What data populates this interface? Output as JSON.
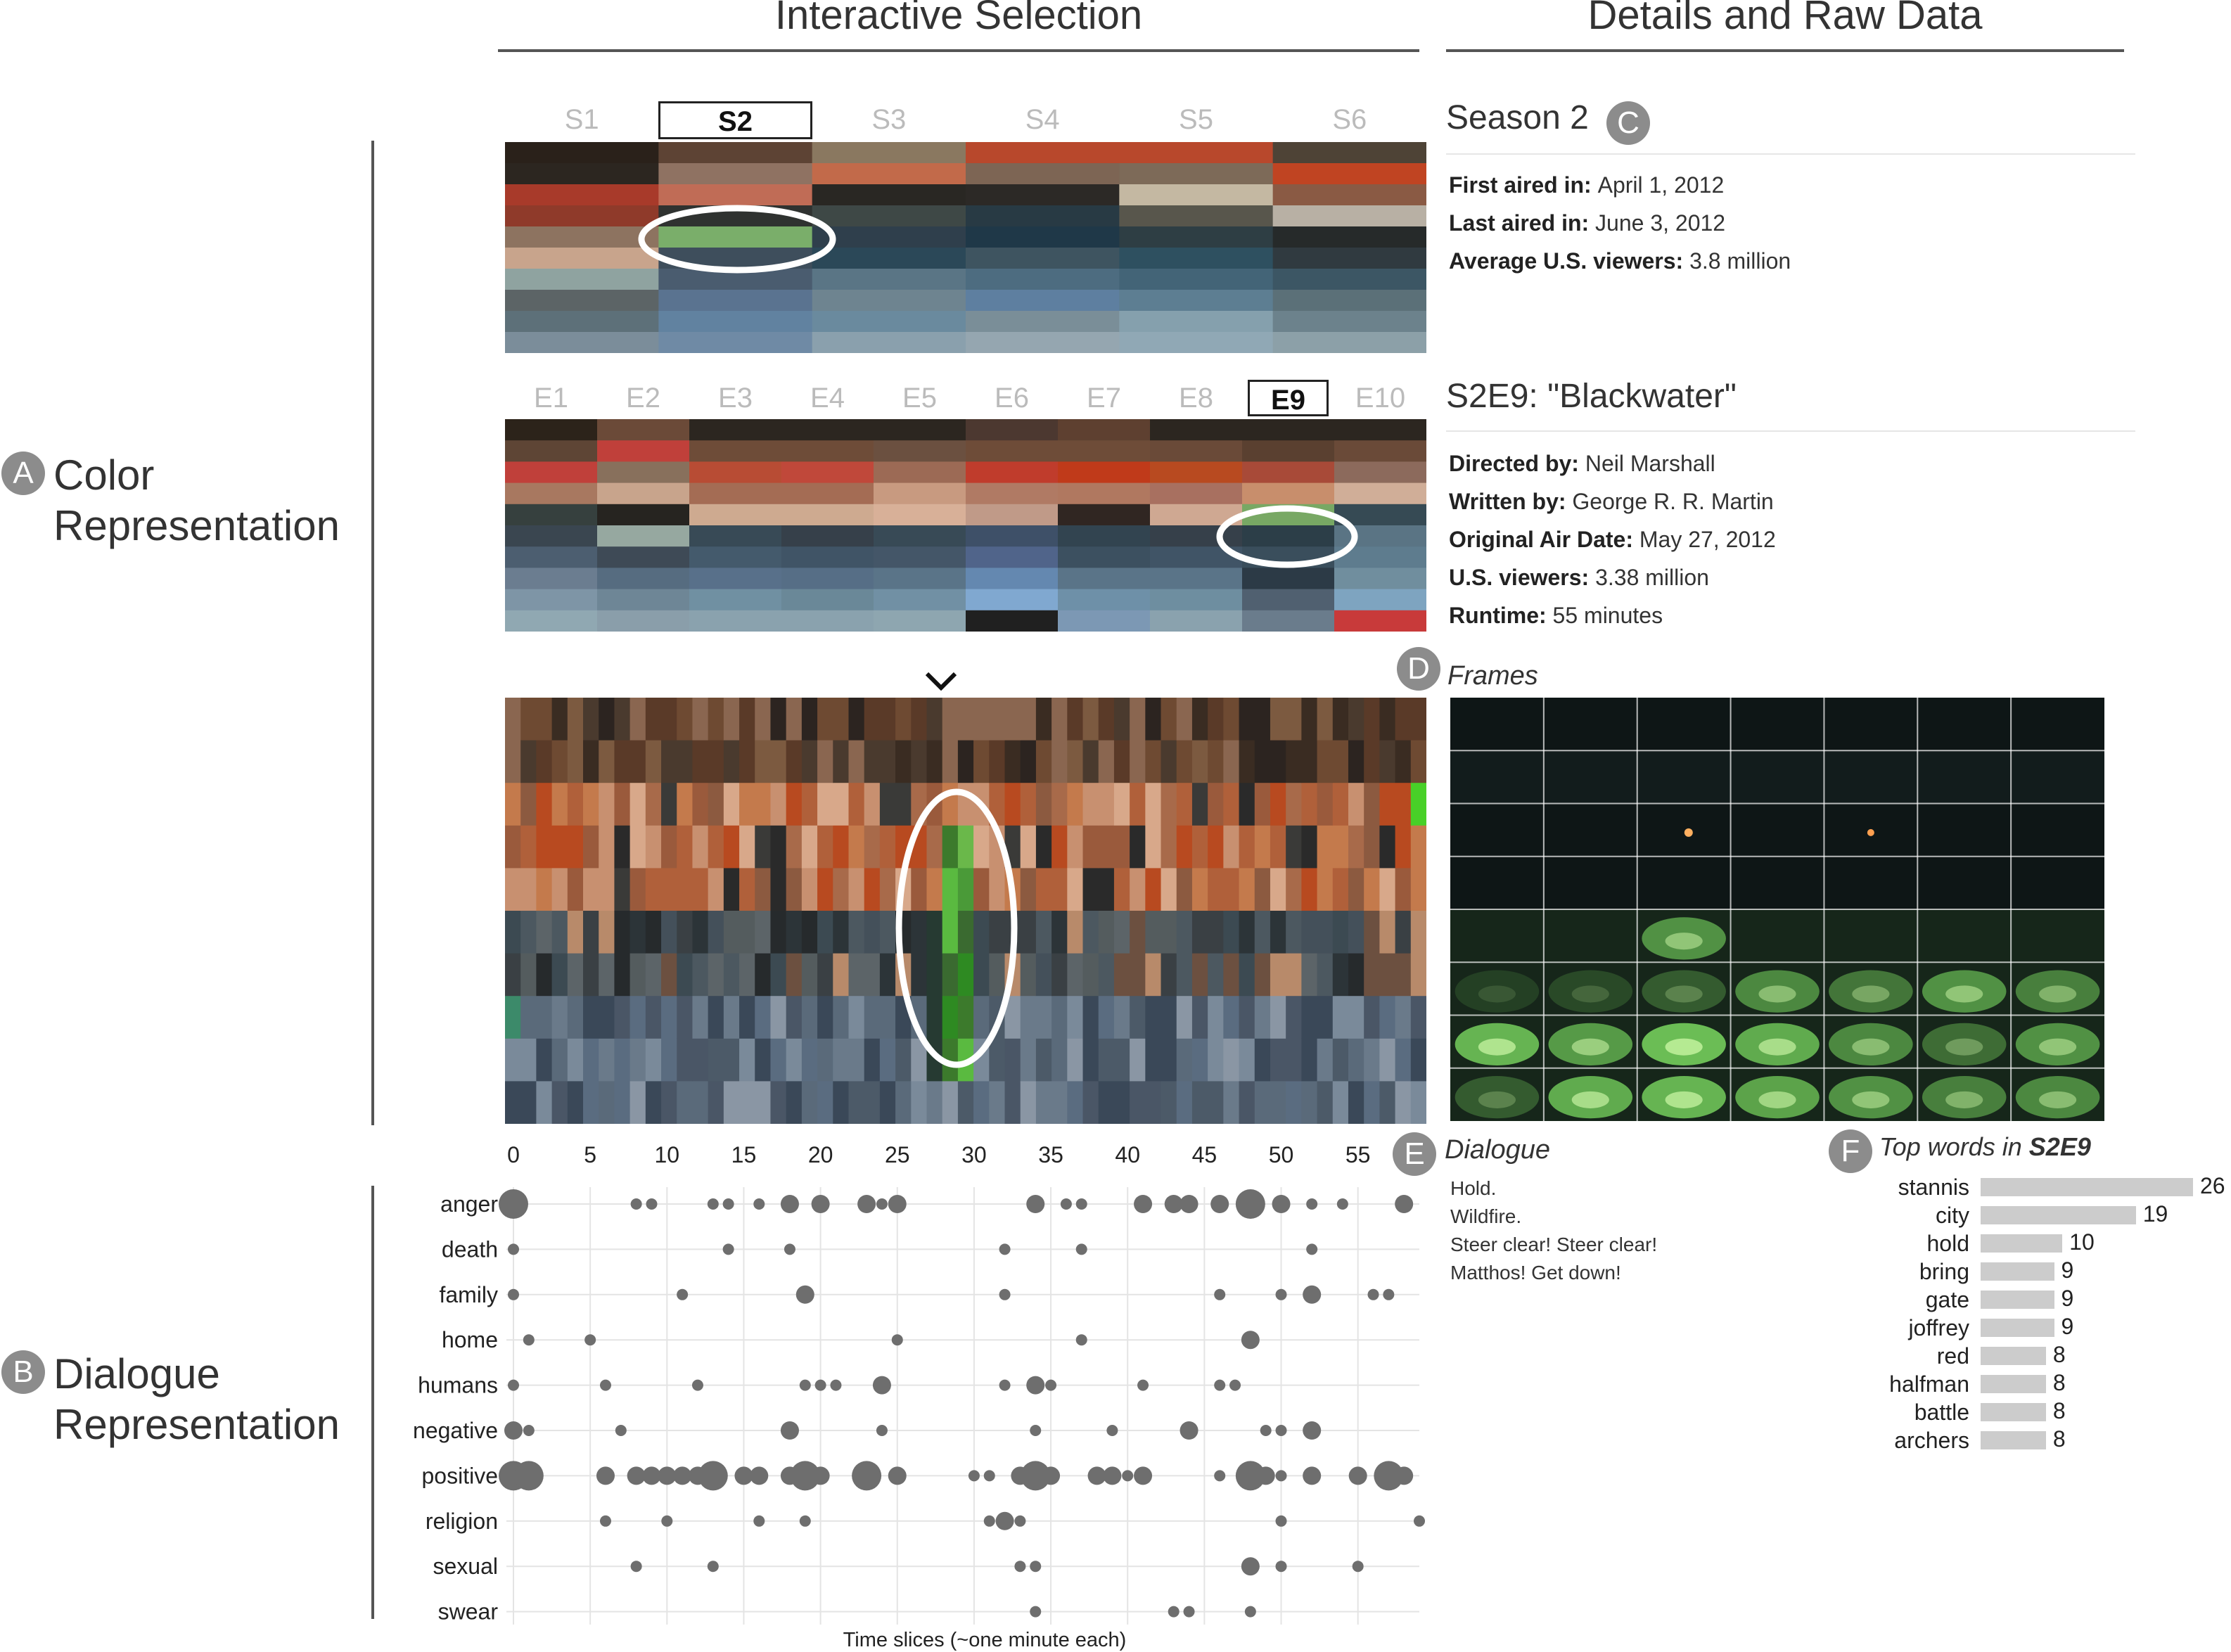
{
  "headers": {
    "left": "Interactive Selection",
    "right": "Details and Raw Data"
  },
  "labels": {
    "a_letter": "A",
    "a_line1": "Color",
    "a_line2": "Representation",
    "b_letter": "B",
    "b_line1": "Dialogue",
    "b_line2": "Representation",
    "c_letter": "C",
    "d_letter": "D",
    "e_letter": "E",
    "f_letter": "F"
  },
  "seasons": [
    "S1",
    "S2",
    "S3",
    "S4",
    "S5",
    "S6"
  ],
  "selected_season_index": 1,
  "season_palette": [
    [
      "#2a211a",
      "#2c2620",
      "#a83a2a",
      "#8f3a2a",
      "#8d7360",
      "#c8a48c",
      "#8fa3a0",
      "#5c6466",
      "#5d7079",
      "#7b8d9a"
    ],
    [
      "#5d4334",
      "#8f7262",
      "#c06c56",
      "#2f3230",
      "#7aae6a",
      "#3e4e5c",
      "#4a5c6f",
      "#5a7390",
      "#6182a0",
      "#6f8aa5"
    ],
    [
      "#8a7860",
      "#c26a4a",
      "#292723",
      "#3e4846",
      "#2f3f4c",
      "#2b4858",
      "#5a7585",
      "#6e8490",
      "#6a8a9e",
      "#8aa0ad"
    ],
    [
      "#b8482c",
      "#7d6554",
      "#2c2926",
      "#283a44",
      "#1f3848",
      "#3e5460",
      "#4d6c80",
      "#5e7fa0",
      "#7a8e98",
      "#95a6b0"
    ],
    [
      "#b8482c",
      "#7d6a58",
      "#c4b8a2",
      "#58564c",
      "#2e3e44",
      "#2e5060",
      "#436477",
      "#5d7e92",
      "#85a0ad",
      "#90a8b5"
    ],
    [
      "#4e4336",
      "#c04422",
      "#8a5a44",
      "#b8b0a4",
      "#262a2a",
      "#303a40",
      "#3c5664",
      "#5b7078",
      "#6c828c",
      "#8ca0a8"
    ]
  ],
  "episodes": [
    "E1",
    "E2",
    "E3",
    "E4",
    "E5",
    "E6",
    "E7",
    "E8",
    "E9",
    "E10"
  ],
  "selected_episode_index": 8,
  "episode_palette": [
    [
      "#2c231a",
      "#5e4535",
      "#c0403a",
      "#a87860",
      "#36403e",
      "#3a4650",
      "#4c5e70",
      "#6b7d90",
      "#7e95a6",
      "#90a8b2"
    ],
    [
      "#6b4a38",
      "#c0403a",
      "#88705c",
      "#c8a48c",
      "#262420",
      "#96a8a0",
      "#3e4a56",
      "#566c80",
      "#6e8696",
      "#8a9eaa"
    ],
    [
      "#2c2620",
      "#6e4c38",
      "#b84c34",
      "#a46c54",
      "#ceaa90",
      "#384a56",
      "#445a6c",
      "#58708a",
      "#7090a2",
      "#8aa2ae"
    ],
    [
      "#2c2620",
      "#6e4c38",
      "#c0483a",
      "#a46c54",
      "#ceaa90",
      "#36404a",
      "#405466",
      "#566e86",
      "#6a8898",
      "#8aa2ae"
    ],
    [
      "#2c2620",
      "#6b5040",
      "#9c6a55",
      "#c89a80",
      "#d8b098",
      "#384a56",
      "#445668",
      "#5a7488",
      "#7190a4",
      "#8ea6b0"
    ],
    [
      "#4c3830",
      "#6e4c38",
      "#c03c2c",
      "#b07a64",
      "#c09a88",
      "#3e5068",
      "#50648a",
      "#6488b0",
      "#80a8d0",
      "#202020"
    ],
    [
      "#5e4030",
      "#6e4c38",
      "#c03a1a",
      "#b07860",
      "#302622",
      "#324450",
      "#3c5060",
      "#5a7488",
      "#6e90a8",
      "#7c98b4"
    ],
    [
      "#2c2620",
      "#6a4a38",
      "#b84a20",
      "#a87060",
      "#cfa892",
      "#36404a",
      "#405466",
      "#5a7488",
      "#6e8ea0",
      "#8aa2ae"
    ],
    [
      "#2c2620",
      "#5a4030",
      "#a84a38",
      "#c88e6c",
      "#78a864",
      "#2c3e48",
      "#3a4e5c",
      "#2c3a46",
      "#506070",
      "#6a7c8c"
    ],
    [
      "#2c2620",
      "#6a4a38",
      "#8c6a5c",
      "#d0ae98",
      "#364a54",
      "#5a7484",
      "#5e7c8e",
      "#708e9e",
      "#7ea4c0",
      "#c83a3a"
    ]
  ],
  "detail_season": {
    "title": "Season 2",
    "rows": [
      {
        "k": "First aired in:",
        "v": "April 1, 2012"
      },
      {
        "k": "Last aired in:",
        "v": "June 3, 2012"
      },
      {
        "k": "Average U.S. viewers:",
        "v": "3.8 million"
      }
    ]
  },
  "detail_episode": {
    "title": "S2E9: \"Blackwater\"",
    "rows": [
      {
        "k": "Directed by:",
        "v": "Neil Marshall"
      },
      {
        "k": "Written by:",
        "v": "George R. R. Martin"
      },
      {
        "k": "Original Air Date:",
        "v": "May 27, 2012"
      },
      {
        "k": "U.S. viewers:",
        "v": "3.38 million"
      },
      {
        "k": "Runtime:",
        "v": "55 minutes"
      }
    ]
  },
  "frames_label": "Frames",
  "dialogue_label": "Dialogue",
  "dialogue_lines": [
    "Hold.",
    "Wildfire.",
    "Steer clear! Steer clear!",
    "Matthos! Get down!"
  ],
  "topwords_label": "Top words in ",
  "topwords_episode": "S2E9",
  "chart_data": [
    {
      "type": "scatter",
      "xlabel": "Time slices (~one minute each)",
      "ylabel": "",
      "xlim": [
        0,
        59
      ],
      "xticks": [
        0,
        5,
        10,
        15,
        20,
        25,
        30,
        35,
        40,
        45,
        50,
        55
      ],
      "categories": [
        "anger",
        "death",
        "family",
        "home",
        "humans",
        "negative",
        "positive",
        "religion",
        "sexual",
        "swear"
      ],
      "points": {
        "anger": [
          [
            0,
            3
          ],
          [
            8,
            1
          ],
          [
            9,
            1
          ],
          [
            13,
            1
          ],
          [
            14,
            1
          ],
          [
            16,
            1
          ],
          [
            18,
            2
          ],
          [
            20,
            2
          ],
          [
            23,
            2
          ],
          [
            24,
            1
          ],
          [
            25,
            2
          ],
          [
            34,
            2
          ],
          [
            36,
            1
          ],
          [
            37,
            1
          ],
          [
            41,
            2
          ],
          [
            43,
            2
          ],
          [
            44,
            2
          ],
          [
            46,
            2
          ],
          [
            48,
            3
          ],
          [
            50,
            2
          ],
          [
            52,
            1
          ],
          [
            54,
            1
          ],
          [
            58,
            2
          ]
        ],
        "death": [
          [
            0,
            1
          ],
          [
            14,
            1
          ],
          [
            18,
            1
          ],
          [
            32,
            1
          ],
          [
            37,
            1
          ],
          [
            52,
            1
          ]
        ],
        "family": [
          [
            0,
            1
          ],
          [
            11,
            1
          ],
          [
            19,
            2
          ],
          [
            32,
            1
          ],
          [
            46,
            1
          ],
          [
            50,
            1
          ],
          [
            52,
            2
          ],
          [
            56,
            1
          ],
          [
            57,
            1
          ]
        ],
        "home": [
          [
            1,
            1
          ],
          [
            5,
            1
          ],
          [
            25,
            1
          ],
          [
            37,
            1
          ],
          [
            48,
            2
          ]
        ],
        "humans": [
          [
            0,
            1
          ],
          [
            6,
            1
          ],
          [
            12,
            1
          ],
          [
            19,
            1
          ],
          [
            20,
            1
          ],
          [
            21,
            1
          ],
          [
            24,
            2
          ],
          [
            32,
            1
          ],
          [
            34,
            2
          ],
          [
            35,
            1
          ],
          [
            41,
            1
          ],
          [
            46,
            1
          ],
          [
            47,
            1
          ]
        ],
        "negative": [
          [
            0,
            2
          ],
          [
            1,
            1
          ],
          [
            7,
            1
          ],
          [
            18,
            2
          ],
          [
            24,
            1
          ],
          [
            34,
            1
          ],
          [
            39,
            1
          ],
          [
            44,
            2
          ],
          [
            49,
            1
          ],
          [
            50,
            1
          ],
          [
            52,
            2
          ]
        ],
        "positive": [
          [
            0,
            3
          ],
          [
            1,
            3
          ],
          [
            6,
            2
          ],
          [
            8,
            2
          ],
          [
            9,
            2
          ],
          [
            10,
            2
          ],
          [
            11,
            2
          ],
          [
            12,
            2
          ],
          [
            13,
            3
          ],
          [
            15,
            2
          ],
          [
            16,
            2
          ],
          [
            18,
            2
          ],
          [
            19,
            3
          ],
          [
            20,
            2
          ],
          [
            23,
            3
          ],
          [
            25,
            2
          ],
          [
            30,
            1
          ],
          [
            31,
            1
          ],
          [
            33,
            2
          ],
          [
            34,
            3
          ],
          [
            35,
            2
          ],
          [
            38,
            2
          ],
          [
            39,
            2
          ],
          [
            40,
            1
          ],
          [
            41,
            2
          ],
          [
            46,
            1
          ],
          [
            48,
            3
          ],
          [
            49,
            2
          ],
          [
            50,
            1
          ],
          [
            52,
            2
          ],
          [
            55,
            2
          ],
          [
            57,
            3
          ],
          [
            58,
            2
          ]
        ],
        "religion": [
          [
            6,
            1
          ],
          [
            10,
            1
          ],
          [
            16,
            1
          ],
          [
            19,
            1
          ],
          [
            31,
            1
          ],
          [
            32,
            2
          ],
          [
            33,
            1
          ],
          [
            50,
            1
          ],
          [
            59,
            1
          ]
        ],
        "sexual": [
          [
            8,
            1
          ],
          [
            13,
            1
          ],
          [
            33,
            1
          ],
          [
            34,
            1
          ],
          [
            48,
            2
          ],
          [
            50,
            1
          ],
          [
            55,
            1
          ]
        ],
        "swear": [
          [
            34,
            1
          ],
          [
            43,
            1
          ],
          [
            44,
            1
          ],
          [
            48,
            1
          ]
        ]
      }
    },
    {
      "type": "bar",
      "title": "",
      "categories": [
        "stannis",
        "city",
        "hold",
        "bring",
        "gate",
        "joffrey",
        "red",
        "halfman",
        "battle",
        "archers"
      ],
      "values": [
        26,
        19,
        10,
        9,
        9,
        9,
        8,
        8,
        8,
        8
      ],
      "xlim": [
        0,
        26
      ]
    }
  ]
}
